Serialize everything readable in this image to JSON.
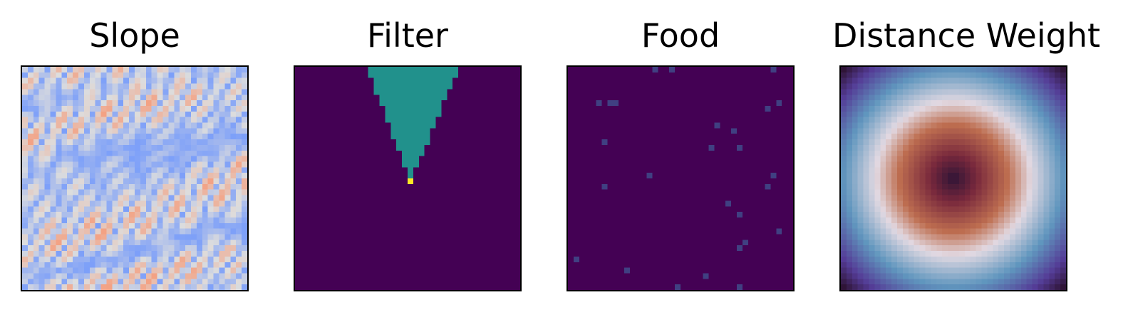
{
  "chart_data": [
    {
      "type": "heatmap",
      "title": "Slope",
      "grid": false,
      "colormap": "coolwarm",
      "ticks": false,
      "resolution": [
        40,
        40
      ],
      "description_values": "terrain slope field, mostly low-to-mid values (blues) with a few high spots (pale orange)"
    },
    {
      "type": "heatmap",
      "title": "Filter",
      "grid": false,
      "colormap": "viridis",
      "ticks": false,
      "resolution": [
        40,
        40
      ],
      "cone": {
        "apex_row": 19,
        "apex_col": 20,
        "top_row": 0,
        "top_left_col": 13,
        "top_right_col": 28,
        "value": 0.5,
        "apex_value": 1.0
      }
    },
    {
      "type": "heatmap",
      "title": "Food",
      "grid": false,
      "colormap": "viridis",
      "ticks": false,
      "resolution": [
        40,
        40
      ],
      "points": [
        [
          0,
          15
        ],
        [
          0,
          18
        ],
        [
          0,
          36
        ],
        [
          6,
          5
        ],
        [
          6,
          7
        ],
        [
          6,
          8
        ],
        [
          7,
          35
        ],
        [
          6,
          37
        ],
        [
          10,
          26
        ],
        [
          11,
          29
        ],
        [
          13,
          6
        ],
        [
          14,
          25
        ],
        [
          14,
          30
        ],
        [
          19,
          14
        ],
        [
          19,
          36
        ],
        [
          21,
          6
        ],
        [
          21,
          35
        ],
        [
          24,
          28
        ],
        [
          26,
          30
        ],
        [
          29,
          37
        ],
        [
          31,
          31
        ],
        [
          32,
          30
        ],
        [
          34,
          1
        ],
        [
          36,
          10
        ],
        [
          37,
          24
        ],
        [
          39,
          19
        ],
        [
          39,
          30
        ]
      ]
    },
    {
      "type": "heatmap",
      "title": "Distance Weight",
      "grid": false,
      "colormap": "twilight_shifted",
      "ticks": false,
      "resolution": [
        40,
        40
      ]
    }
  ]
}
